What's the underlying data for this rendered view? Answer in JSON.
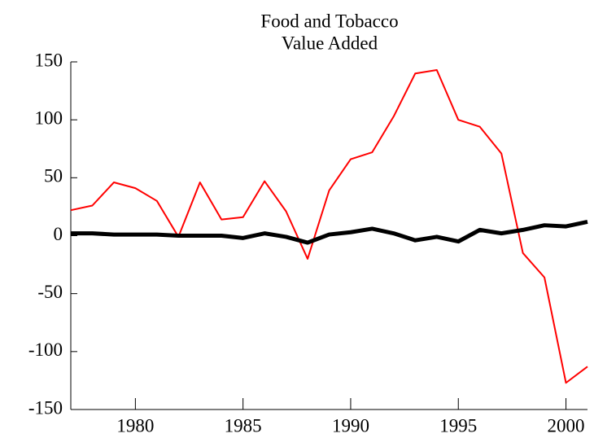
{
  "chart_data": {
    "type": "line",
    "title": "Food and Tobacco",
    "subtitle": "Value Added",
    "x": [
      1977,
      1978,
      1979,
      1980,
      1981,
      1982,
      1983,
      1984,
      1985,
      1986,
      1987,
      1988,
      1989,
      1990,
      1991,
      1992,
      1993,
      1994,
      1995,
      1996,
      1997,
      1998,
      1999,
      2000,
      2001
    ],
    "series": [
      {
        "color": "#ff0000",
        "width": 2,
        "values": [
          22,
          26,
          46,
          41,
          30,
          -1,
          46,
          14,
          16,
          47,
          21,
          -20,
          39,
          66,
          72,
          103,
          140,
          143,
          100,
          94,
          71,
          -15,
          -36,
          -127,
          -113
        ]
      },
      {
        "color": "#000000",
        "width": 5,
        "values": [
          2,
          2,
          1,
          1,
          1,
          0,
          0,
          0,
          -2,
          2,
          -1,
          -6,
          1,
          3,
          6,
          2,
          -4,
          -1,
          -5,
          5,
          2,
          5,
          9,
          8,
          12
        ]
      }
    ],
    "xlim": [
      1977,
      2001
    ],
    "xticks": [
      1980,
      1985,
      1990,
      1995,
      2000
    ],
    "ylim": [
      -150,
      150
    ],
    "yticks": [
      -150,
      -100,
      -50,
      0,
      50,
      100,
      150
    ]
  }
}
